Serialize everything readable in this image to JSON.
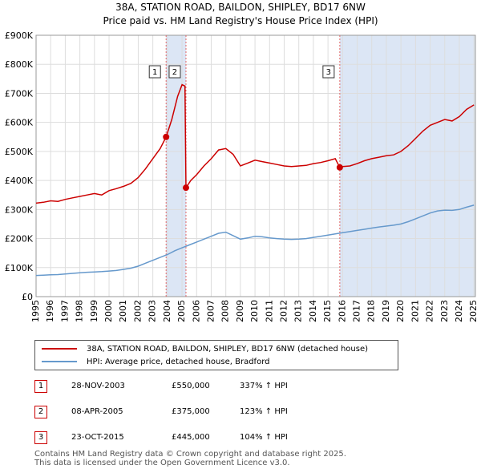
{
  "title": "38A, STATION ROAD, BAILDON, SHIPLEY, BD17 6NW",
  "subtitle": "Price paid vs. HM Land Registry's House Price Index (HPI)",
  "colors": {
    "property": "#cc0000",
    "hpi": "#6699cc",
    "shade": "#dce6f5",
    "grid": "#dddddd",
    "vline": "#e06666"
  },
  "chart_data": {
    "type": "line",
    "xlim": [
      1995,
      2025.1
    ],
    "ylim": [
      0,
      900000
    ],
    "x_ticks": [
      1995,
      1996,
      1997,
      1998,
      1999,
      2000,
      2001,
      2002,
      2003,
      2004,
      2005,
      2006,
      2007,
      2008,
      2009,
      2010,
      2011,
      2012,
      2013,
      2014,
      2015,
      2016,
      2017,
      2018,
      2019,
      2020,
      2021,
      2022,
      2023,
      2024,
      2025
    ],
    "y_ticks": [
      {
        "value": 0,
        "label": "£0"
      },
      {
        "value": 100000,
        "label": "£100K"
      },
      {
        "value": 200000,
        "label": "£200K"
      },
      {
        "value": 300000,
        "label": "£300K"
      },
      {
        "value": 400000,
        "label": "£400K"
      },
      {
        "value": 500000,
        "label": "£500K"
      },
      {
        "value": 600000,
        "label": "£600K"
      },
      {
        "value": 700000,
        "label": "£700K"
      },
      {
        "value": 800000,
        "label": "£800K"
      },
      {
        "value": 900000,
        "label": "£900K"
      }
    ],
    "shaded_ranges": [
      [
        2003.9,
        2005.27
      ],
      [
        2015.81,
        2025.1
      ]
    ],
    "series": [
      {
        "name": "38A, STATION ROAD, BAILDON, SHIPLEY, BD17 6NW (detached house)",
        "points": [
          [
            1995,
            322000
          ],
          [
            1995.5,
            325000
          ],
          [
            1996,
            330000
          ],
          [
            1996.5,
            328000
          ],
          [
            1997,
            335000
          ],
          [
            1997.5,
            340000
          ],
          [
            1998,
            345000
          ],
          [
            1998.5,
            350000
          ],
          [
            1999,
            355000
          ],
          [
            1999.5,
            350000
          ],
          [
            2000,
            365000
          ],
          [
            2000.5,
            372000
          ],
          [
            2001,
            380000
          ],
          [
            2001.5,
            390000
          ],
          [
            2002,
            410000
          ],
          [
            2002.5,
            440000
          ],
          [
            2003,
            475000
          ],
          [
            2003.5,
            510000
          ],
          [
            2003.91,
            550000
          ],
          [
            2004.3,
            610000
          ],
          [
            2004.7,
            690000
          ],
          [
            2005.0,
            730000
          ],
          [
            2005.2,
            725000
          ],
          [
            2005.27,
            375000
          ],
          [
            2005.6,
            400000
          ],
          [
            2006,
            420000
          ],
          [
            2006.5,
            450000
          ],
          [
            2007,
            475000
          ],
          [
            2007.5,
            505000
          ],
          [
            2008,
            510000
          ],
          [
            2008.5,
            490000
          ],
          [
            2009,
            450000
          ],
          [
            2009.5,
            460000
          ],
          [
            2010,
            470000
          ],
          [
            2010.5,
            465000
          ],
          [
            2011,
            460000
          ],
          [
            2011.5,
            455000
          ],
          [
            2012,
            450000
          ],
          [
            2012.5,
            448000
          ],
          [
            2013,
            450000
          ],
          [
            2013.5,
            452000
          ],
          [
            2014,
            458000
          ],
          [
            2014.5,
            462000
          ],
          [
            2015,
            468000
          ],
          [
            2015.5,
            475000
          ],
          [
            2015.81,
            445000
          ],
          [
            2016,
            448000
          ],
          [
            2016.5,
            450000
          ],
          [
            2017,
            458000
          ],
          [
            2017.5,
            468000
          ],
          [
            2018,
            475000
          ],
          [
            2018.5,
            480000
          ],
          [
            2019,
            485000
          ],
          [
            2019.5,
            488000
          ],
          [
            2020,
            500000
          ],
          [
            2020.5,
            520000
          ],
          [
            2021,
            545000
          ],
          [
            2021.5,
            570000
          ],
          [
            2022,
            590000
          ],
          [
            2022.5,
            600000
          ],
          [
            2023,
            610000
          ],
          [
            2023.5,
            605000
          ],
          [
            2024,
            620000
          ],
          [
            2024.5,
            645000
          ],
          [
            2025,
            660000
          ]
        ]
      },
      {
        "name": "HPI: Average price, detached house, Bradford",
        "points": [
          [
            1995,
            73000
          ],
          [
            1995.5,
            74000
          ],
          [
            1996,
            75000
          ],
          [
            1996.5,
            76000
          ],
          [
            1997,
            78000
          ],
          [
            1997.5,
            80000
          ],
          [
            1998,
            82000
          ],
          [
            1998.5,
            84000
          ],
          [
            1999,
            85000
          ],
          [
            1999.5,
            86000
          ],
          [
            2000,
            88000
          ],
          [
            2000.5,
            90000
          ],
          [
            2001,
            94000
          ],
          [
            2001.5,
            98000
          ],
          [
            2002,
            105000
          ],
          [
            2002.5,
            115000
          ],
          [
            2003,
            125000
          ],
          [
            2003.5,
            135000
          ],
          [
            2004,
            145000
          ],
          [
            2004.5,
            158000
          ],
          [
            2005,
            168000
          ],
          [
            2005.5,
            178000
          ],
          [
            2006,
            188000
          ],
          [
            2006.5,
            198000
          ],
          [
            2007,
            208000
          ],
          [
            2007.5,
            218000
          ],
          [
            2008,
            222000
          ],
          [
            2008.5,
            210000
          ],
          [
            2009,
            198000
          ],
          [
            2009.5,
            202000
          ],
          [
            2010,
            208000
          ],
          [
            2010.5,
            206000
          ],
          [
            2011,
            202000
          ],
          [
            2011.5,
            200000
          ],
          [
            2012,
            198000
          ],
          [
            2012.5,
            197000
          ],
          [
            2013,
            198000
          ],
          [
            2013.5,
            200000
          ],
          [
            2014,
            204000
          ],
          [
            2014.5,
            208000
          ],
          [
            2015,
            212000
          ],
          [
            2015.5,
            216000
          ],
          [
            2016,
            220000
          ],
          [
            2016.5,
            224000
          ],
          [
            2017,
            228000
          ],
          [
            2017.5,
            232000
          ],
          [
            2018,
            236000
          ],
          [
            2018.5,
            240000
          ],
          [
            2019,
            243000
          ],
          [
            2019.5,
            246000
          ],
          [
            2020,
            250000
          ],
          [
            2020.5,
            258000
          ],
          [
            2021,
            268000
          ],
          [
            2021.5,
            278000
          ],
          [
            2022,
            288000
          ],
          [
            2022.5,
            295000
          ],
          [
            2023,
            298000
          ],
          [
            2023.5,
            297000
          ],
          [
            2024,
            300000
          ],
          [
            2024.5,
            308000
          ],
          [
            2025,
            315000
          ]
        ]
      }
    ],
    "sales": [
      {
        "label": "1",
        "x": 2003.91,
        "value": 550000
      },
      {
        "label": "2",
        "x": 2005.27,
        "value": 375000
      },
      {
        "label": "3",
        "x": 2015.81,
        "value": 445000
      }
    ]
  },
  "legend": {
    "property": "38A, STATION ROAD, BAILDON, SHIPLEY, BD17 6NW (detached house)",
    "hpi": "HPI: Average price, detached house, Bradford"
  },
  "transactions": [
    {
      "num": "1",
      "date": "28-NOV-2003",
      "price": "£550,000",
      "hpi": "337% ↑ HPI"
    },
    {
      "num": "2",
      "date": "08-APR-2005",
      "price": "£375,000",
      "hpi": "123% ↑ HPI"
    },
    {
      "num": "3",
      "date": "23-OCT-2015",
      "price": "£445,000",
      "hpi": "104% ↑ HPI"
    }
  ],
  "footer": {
    "line1": "Contains HM Land Registry data © Crown copyright and database right 2025.",
    "line2": "This data is licensed under the Open Government Licence v3.0."
  }
}
